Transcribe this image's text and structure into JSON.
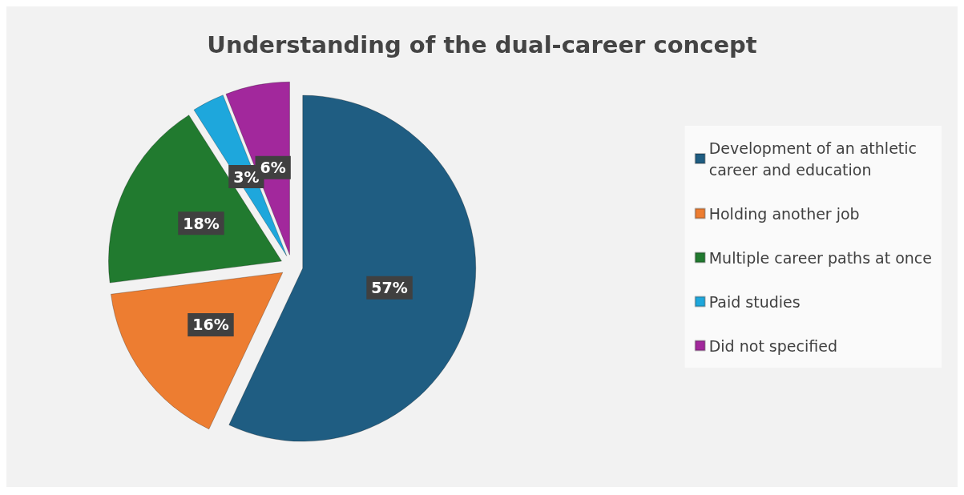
{
  "chart_data": {
    "type": "pie",
    "title": "Understanding of the dual-career concept",
    "categories": [
      "Development of an athletic career and education",
      "Holding another job",
      "Multiple career paths at once",
      "Paid studies",
      "Did not specified"
    ],
    "values": [
      57,
      16,
      18,
      3,
      6
    ],
    "colors": [
      "#1f5d82",
      "#ed7d31",
      "#217a2f",
      "#1ea7dc",
      "#a2289c"
    ],
    "value_labels": [
      "57%",
      "16%",
      "18%",
      "3%",
      "6%"
    ],
    "legend": "right"
  }
}
